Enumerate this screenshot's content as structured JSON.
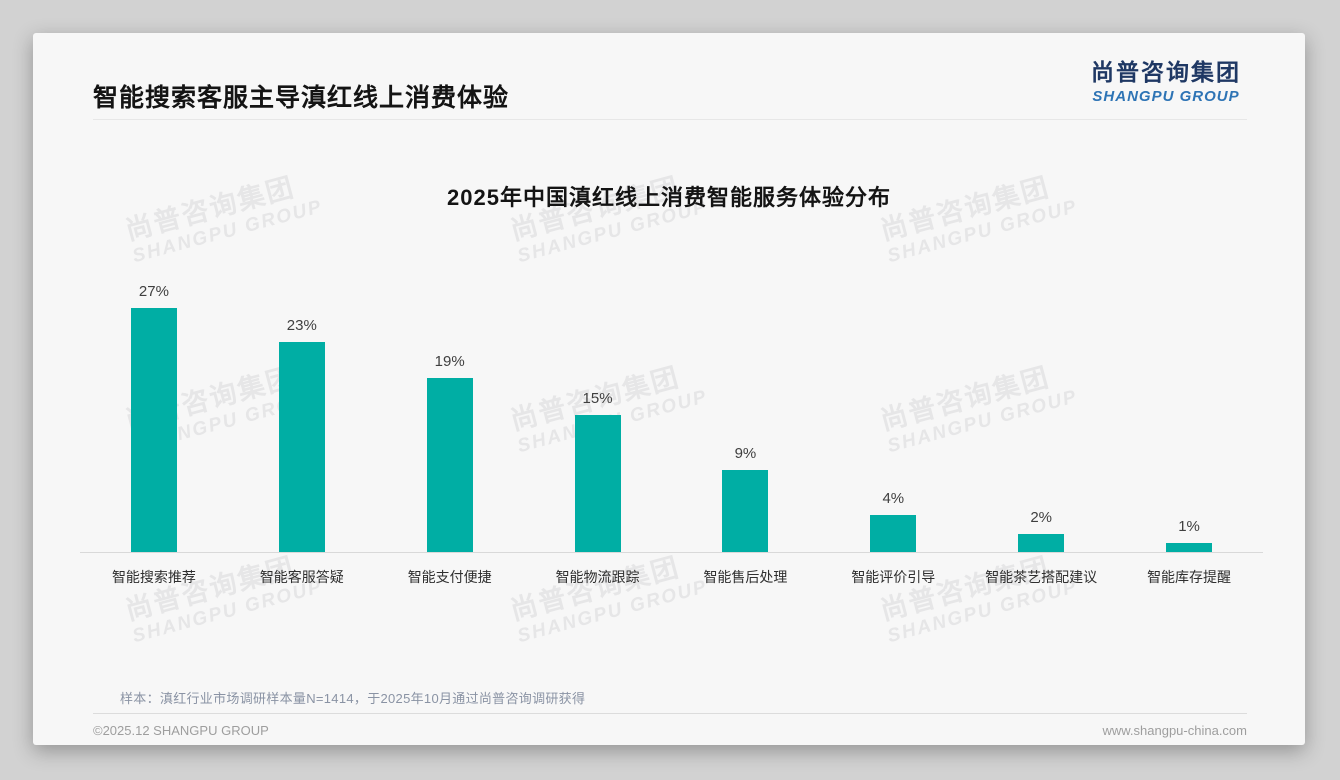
{
  "page": {
    "title": "智能搜索客服主导滇红线上消费体验",
    "logo": {
      "cn": "尚普咨询集团",
      "en": "SHANGPU GROUP"
    },
    "watermark": {
      "line1": "尚普咨询集团",
      "line2": "SHANGPU GROUP"
    },
    "note": "样本：滇红行业市场调研样本量N=1414，于2025年10月通过尚普咨询调研获得",
    "footer": {
      "copyright": "©2025.12 SHANGPU GROUP",
      "website": "www.shangpu-china.com"
    }
  },
  "colors": {
    "bar": "#00AEA4",
    "logo_cn": "#1f3864",
    "logo_en": "#2e74b5",
    "card_bg": "#f7f7f7"
  },
  "chart_data": {
    "type": "bar",
    "title": "2025年中国滇红线上消费智能服务体验分布",
    "categories": [
      "智能搜索推荐",
      "智能客服答疑",
      "智能支付便捷",
      "智能物流跟踪",
      "智能售后处理",
      "智能评价引导",
      "智能茶艺搭配建议",
      "智能库存提醒"
    ],
    "values": [
      27,
      23,
      19,
      15,
      9,
      4,
      2,
      1
    ],
    "value_labels": [
      "27%",
      "23%",
      "19%",
      "15%",
      "9%",
      "4%",
      "2%",
      "1%"
    ],
    "unit": "%",
    "ylim": [
      0,
      29
    ],
    "bar_color": "#00AEA4",
    "grid": false,
    "legend": false,
    "value_labels_position": "above-bars",
    "axis_line_color": "#d9d9d9"
  }
}
